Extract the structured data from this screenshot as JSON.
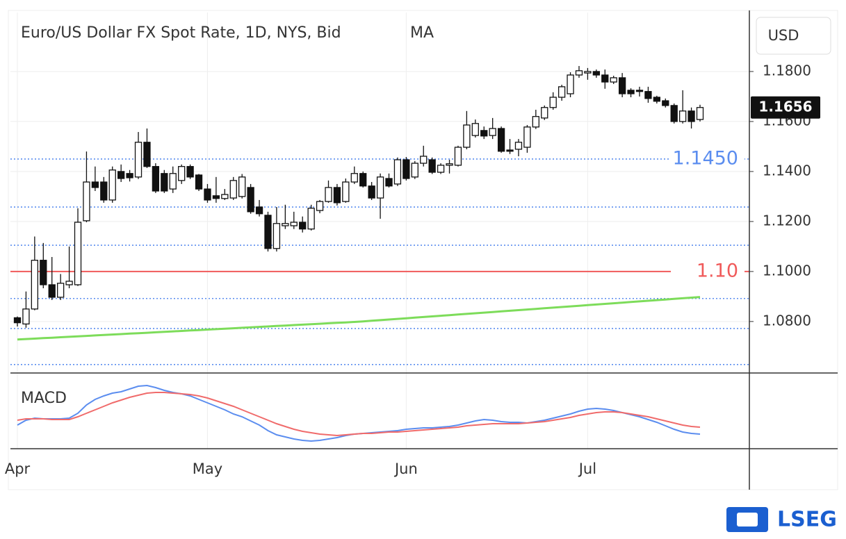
{
  "chart_data": [
    {
      "type": "candlestick",
      "title": "Euro/US Dollar FX Spot Rate, 1D, NYS, Bid",
      "currency": "USD",
      "last_price": 1.1656,
      "categories": [
        "Apr",
        null,
        null,
        null,
        null,
        null,
        null,
        null,
        null,
        null,
        null,
        null,
        null,
        null,
        null,
        null,
        null,
        null,
        null,
        null,
        null,
        null,
        "May",
        null,
        null,
        null,
        null,
        null,
        null,
        null,
        null,
        null,
        null,
        null,
        null,
        null,
        null,
        null,
        null,
        null,
        null,
        null,
        null,
        null,
        null,
        "Jun",
        null,
        null,
        null,
        null,
        null,
        null,
        null,
        null,
        null,
        null,
        null,
        null,
        null,
        null,
        null,
        null,
        null,
        null,
        null,
        null,
        "Jul",
        null,
        null,
        null,
        null,
        null,
        null,
        null,
        null,
        null,
        null,
        null,
        null,
        null
      ],
      "open": [
        1.0815,
        1.079,
        1.085,
        1.1045,
        1.0947,
        1.0897,
        1.0947,
        1.0947,
        1.1203,
        1.1358,
        1.1358,
        1.1286,
        1.14,
        1.1392,
        1.1378,
        1.1517,
        1.142,
        1.1392,
        1.133,
        1.1364,
        1.142,
        1.1386,
        1.133,
        1.1303,
        1.1292,
        1.1294,
        1.13,
        1.1336,
        1.1258,
        1.1225,
        1.1092,
        1.1183,
        1.1183,
        1.1197,
        1.117,
        1.1244,
        1.128,
        1.1336,
        1.128,
        1.1358,
        1.1392,
        1.1342,
        1.1294,
        1.1372,
        1.135,
        1.1447,
        1.1378,
        1.1433,
        1.1447,
        1.1397,
        1.1425,
        1.1425,
        1.1497,
        1.1544,
        1.1564,
        1.1544,
        1.1572,
        1.1486,
        1.1489,
        1.1497,
        1.1578,
        1.1614,
        1.1656,
        1.1697,
        1.1711,
        1.1786,
        1.1794,
        1.18,
        1.1786,
        1.1758,
        1.1775,
        1.1725,
        1.1725,
        1.172,
        1.1697,
        1.1683,
        1.1664,
        1.16,
        1.1642,
        1.1608
      ],
      "high": [
        1.082,
        1.092,
        1.114,
        1.1114,
        1.1058,
        1.099,
        1.11,
        1.1253,
        1.148,
        1.142,
        1.1378,
        1.142,
        1.1428,
        1.1406,
        1.1558,
        1.1572,
        1.1433,
        1.1406,
        1.142,
        1.1428,
        1.1428,
        1.139,
        1.135,
        1.1378,
        1.133,
        1.1378,
        1.139,
        1.135,
        1.1286,
        1.1239,
        1.1258,
        1.1267,
        1.1239,
        1.122,
        1.1267,
        1.1286,
        1.1364,
        1.135,
        1.1372,
        1.142,
        1.14,
        1.1358,
        1.1392,
        1.1392,
        1.1456,
        1.1458,
        1.1442,
        1.1503,
        1.1456,
        1.1433,
        1.1447,
        1.1503,
        1.1642,
        1.1608,
        1.158,
        1.1614,
        1.158,
        1.153,
        1.153,
        1.1586,
        1.1647,
        1.1664,
        1.1717,
        1.1747,
        1.1797,
        1.1822,
        1.1814,
        1.1808,
        1.1808,
        1.1783,
        1.1794,
        1.1733,
        1.1739,
        1.1739,
        1.1703,
        1.1692,
        1.1672,
        1.1725,
        1.1656,
        1.1667
      ],
      "low": [
        1.078,
        1.0775,
        1.0845,
        1.0933,
        1.0886,
        1.0886,
        1.0933,
        1.0942,
        1.1197,
        1.1322,
        1.1275,
        1.1275,
        1.1358,
        1.136,
        1.137,
        1.1414,
        1.1314,
        1.1314,
        1.1314,
        1.135,
        1.137,
        1.1322,
        1.1275,
        1.1275,
        1.1286,
        1.1286,
        1.1292,
        1.1231,
        1.122,
        1.108,
        1.108,
        1.117,
        1.117,
        1.1156,
        1.1164,
        1.1233,
        1.1275,
        1.1264,
        1.1275,
        1.135,
        1.1336,
        1.1286,
        1.1211,
        1.1336,
        1.1342,
        1.1364,
        1.137,
        1.142,
        1.139,
        1.139,
        1.1392,
        1.142,
        1.1489,
        1.1536,
        1.153,
        1.153,
        1.1475,
        1.147,
        1.1461,
        1.1475,
        1.157,
        1.1606,
        1.1647,
        1.1683,
        1.1697,
        1.1775,
        1.1767,
        1.1775,
        1.1731,
        1.175,
        1.1697,
        1.1697,
        1.17,
        1.1675,
        1.1672,
        1.1656,
        1.1592,
        1.1592,
        1.1572,
        1.16
      ],
      "close": [
        1.0795,
        1.085,
        1.1045,
        1.0947,
        1.0897,
        1.0953,
        1.0961,
        1.1197,
        1.1358,
        1.1336,
        1.1286,
        1.1406,
        1.1372,
        1.1375,
        1.1517,
        1.142,
        1.1322,
        1.1322,
        1.1392,
        1.142,
        1.1378,
        1.133,
        1.1286,
        1.1292,
        1.1308,
        1.1364,
        1.1378,
        1.1239,
        1.1231,
        1.1092,
        1.1192,
        1.1192,
        1.1197,
        1.117,
        1.1253,
        1.128,
        1.1336,
        1.1275,
        1.1358,
        1.1392,
        1.1342,
        1.1294,
        1.1378,
        1.1342,
        1.1447,
        1.1372,
        1.1433,
        1.1461,
        1.1397,
        1.1425,
        1.1431,
        1.1497,
        1.1586,
        1.1592,
        1.1542,
        1.1572,
        1.1481,
        1.1481,
        1.1517,
        1.1578,
        1.162,
        1.1656,
        1.1697,
        1.1739,
        1.1786,
        1.1803,
        1.18,
        1.1786,
        1.1758,
        1.1775,
        1.1711,
        1.1711,
        1.172,
        1.1692,
        1.1681,
        1.1664,
        1.16,
        1.1642,
        1.16,
        1.1656
      ],
      "ma": {
        "name": "MA",
        "color": "#7ddc5a",
        "values": [
          1.0728,
          1.07298,
          1.07316,
          1.07334,
          1.07352,
          1.0737,
          1.07388,
          1.07406,
          1.07424,
          1.07442,
          1.0746,
          1.07478,
          1.07496,
          1.07514,
          1.07532,
          1.0755,
          1.07568,
          1.07586,
          1.07604,
          1.07622,
          1.0764,
          1.07658,
          1.07676,
          1.07694,
          1.07712,
          1.0773,
          1.07748,
          1.07766,
          1.07784,
          1.07802,
          1.0782,
          1.07838,
          1.07856,
          1.07874,
          1.07892,
          1.0791,
          1.07928,
          1.07946,
          1.07964,
          1.07982,
          1.08005,
          1.0803,
          1.08055,
          1.0808,
          1.08105,
          1.0813,
          1.08155,
          1.0818,
          1.08205,
          1.0823,
          1.08255,
          1.0828,
          1.08305,
          1.0833,
          1.08355,
          1.0838,
          1.08405,
          1.0843,
          1.08455,
          1.0848,
          1.08505,
          1.0853,
          1.08555,
          1.0858,
          1.08605,
          1.0863,
          1.08655,
          1.0868,
          1.08705,
          1.0873,
          1.08755,
          1.0878,
          1.08805,
          1.0883,
          1.08855,
          1.0888,
          1.08905,
          1.0893,
          1.08955,
          1.0898
        ]
      },
      "levels": [
        {
          "value": 1.145,
          "label": "1.1450",
          "color": "#5b8def",
          "style": "dotted"
        },
        {
          "value": 1.1258,
          "color": "#5b8def",
          "style": "dotted"
        },
        {
          "value": 1.1105,
          "color": "#5b8def",
          "style": "dotted"
        },
        {
          "value": 1.1,
          "label": "1.10",
          "color": "#f05a5a",
          "style": "solid"
        },
        {
          "value": 1.0892,
          "color": "#5b8def",
          "style": "dotted"
        },
        {
          "value": 1.0772,
          "color": "#5b8def",
          "style": "dotted"
        },
        {
          "value": 1.0628,
          "color": "#5b8def",
          "style": "dotted"
        }
      ],
      "ylim": [
        1.0594,
        1.2036
      ],
      "yticks": [
        {
          "value": 1.18,
          "label": "1.1800"
        },
        {
          "value": 1.16,
          "label": "1.1600"
        },
        {
          "value": 1.14,
          "label": "1.1400"
        },
        {
          "value": 1.12,
          "label": "1.1200"
        },
        {
          "value": 1.1,
          "label": "1.1000"
        },
        {
          "value": 1.08,
          "label": "1.0800"
        }
      ],
      "grid": true
    },
    {
      "type": "line",
      "title": "MACD",
      "series": [
        {
          "color": "#5b8def",
          "values": [
            -0.0024,
            -0.001,
            -0.0004,
            -0.0006,
            -0.0006,
            -0.0006,
            -0.0004,
            0.001,
            0.0034,
            0.005,
            0.006,
            0.0068,
            0.0072,
            0.008,
            0.0088,
            0.009,
            0.0084,
            0.0076,
            0.007,
            0.0066,
            0.006,
            0.005,
            0.004,
            0.003,
            0.002,
            0.0008,
            0,
            -0.0012,
            -0.0024,
            -0.004,
            -0.0052,
            -0.0058,
            -0.0064,
            -0.0068,
            -0.007,
            -0.0068,
            -0.0064,
            -0.006,
            -0.0054,
            -0.005,
            -0.0048,
            -0.0046,
            -0.0044,
            -0.0042,
            -0.004,
            -0.0036,
            -0.0034,
            -0.0032,
            -0.0032,
            -0.003,
            -0.0028,
            -0.0024,
            -0.0018,
            -0.0012,
            -0.0008,
            -0.001,
            -0.0014,
            -0.0016,
            -0.0016,
            -0.0018,
            -0.0014,
            -0.001,
            -0.0004,
            0.0002,
            0.0008,
            0.0016,
            0.0022,
            0.0024,
            0.0022,
            0.0018,
            0.0012,
            0.0006,
            0,
            -0.0008,
            -0.0016,
            -0.0026,
            -0.0036,
            -0.0044,
            -0.0048,
            -0.005
          ]
        },
        {
          "color": "#f06b6b",
          "values": [
            -0.001,
            -0.0006,
            -0.0006,
            -0.0006,
            -0.0008,
            -0.0008,
            -0.0008,
            0,
            0.001,
            0.002,
            0.003,
            0.004,
            0.0048,
            0.0056,
            0.0062,
            0.0068,
            0.007,
            0.007,
            0.0068,
            0.0066,
            0.0064,
            0.006,
            0.0054,
            0.0046,
            0.0038,
            0.003,
            0.002,
            0.001,
            0,
            -0.001,
            -0.002,
            -0.0028,
            -0.0036,
            -0.0042,
            -0.0046,
            -0.005,
            -0.0052,
            -0.0054,
            -0.0052,
            -0.005,
            -0.0048,
            -0.0048,
            -0.0046,
            -0.0044,
            -0.0044,
            -0.0042,
            -0.004,
            -0.0038,
            -0.0036,
            -0.0034,
            -0.0032,
            -0.003,
            -0.0026,
            -0.0024,
            -0.0022,
            -0.002,
            -0.002,
            -0.002,
            -0.002,
            -0.0018,
            -0.0016,
            -0.0014,
            -0.001,
            -0.0006,
            -0.0002,
            0.0004,
            0.0008,
            0.0012,
            0.0014,
            0.0014,
            0.0012,
            0.0008,
            0.0004,
            0,
            -0.0006,
            -0.0012,
            -0.0018,
            -0.0024,
            -0.0028,
            -0.003
          ]
        }
      ],
      "ylim": [
        -0.009,
        0.012
      ]
    }
  ],
  "footer": {
    "logo": "LSEG"
  }
}
